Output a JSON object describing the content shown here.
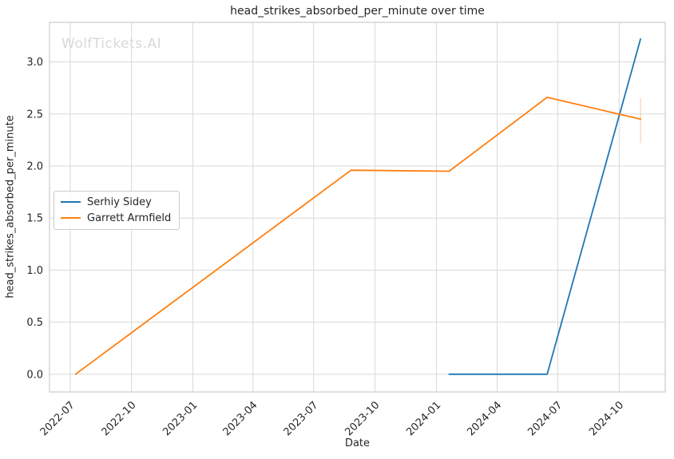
{
  "watermark": "WolfTickets.AI",
  "chart_data": {
    "type": "line",
    "title": "head_strikes_absorbed_per_minute over time",
    "xlabel": "Date",
    "ylabel": "head_strikes_absorbed_per_minute",
    "x_ticks": [
      "2022-07",
      "2022-10",
      "2023-01",
      "2023-04",
      "2023-07",
      "2023-10",
      "2024-01",
      "2024-04",
      "2024-07",
      "2024-10"
    ],
    "y_tick_labels": [
      "0.0",
      "0.5",
      "1.0",
      "1.5",
      "2.0",
      "2.5",
      "3.0"
    ],
    "xlim": [
      "2022-05-31",
      "2024-12-09"
    ],
    "ylim": [
      -0.17,
      3.38
    ],
    "grid": true,
    "legend_position": "center-left",
    "colors": {
      "grid": "#d9d9d9",
      "spine": "#cccccc",
      "text": "#262626",
      "watermark": "#d8d8d8"
    },
    "series": [
      {
        "name": "Serhiy Sidey",
        "color": "#1f77b4",
        "x": [
          "2024-01-20",
          "2024-06-15",
          "2024-11-02"
        ],
        "y": [
          0.0,
          0.0,
          3.22
        ]
      },
      {
        "name": "Garrett Armfield",
        "color": "#ff7f0e",
        "x": [
          "2022-07-09",
          "2023-08-26",
          "2024-01-20",
          "2024-06-15",
          "2024-11-02"
        ],
        "y": [
          0.0,
          1.96,
          1.95,
          2.66,
          2.45
        ],
        "error_bars": [
          {
            "x": "2024-11-02",
            "low": 2.22,
            "high": 2.65
          }
        ]
      }
    ]
  }
}
